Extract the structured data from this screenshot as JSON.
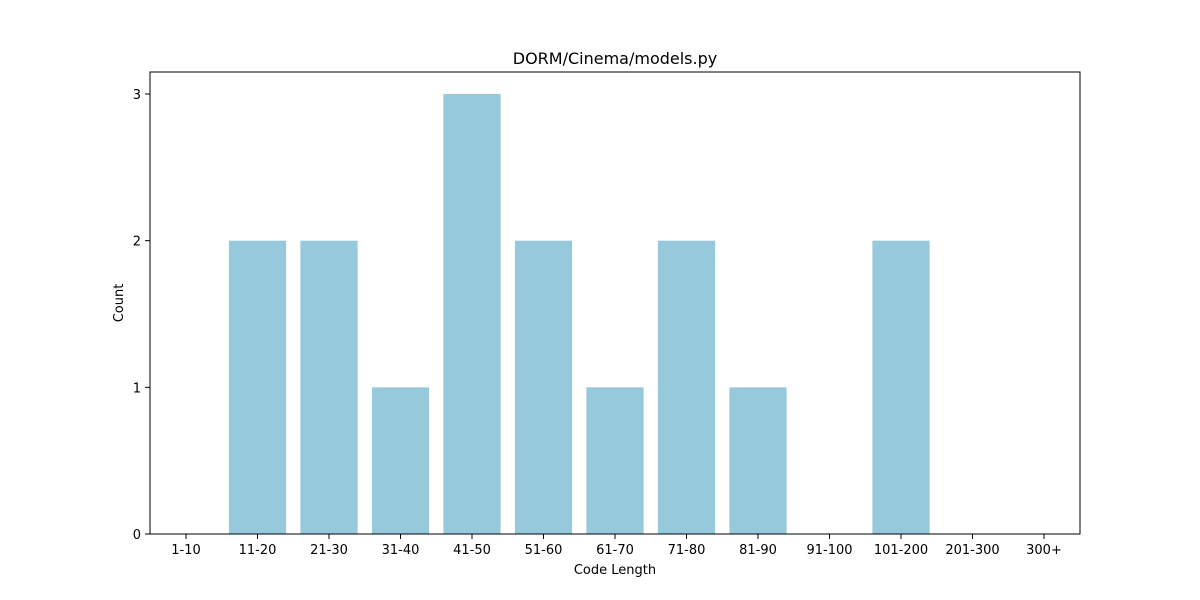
{
  "chart_data": {
    "type": "bar",
    "title": "DORM/Cinema/models.py",
    "xlabel": "Code Length",
    "ylabel": "Count",
    "categories": [
      "1-10",
      "11-20",
      "21-30",
      "31-40",
      "41-50",
      "51-60",
      "61-70",
      "71-80",
      "81-90",
      "91-100",
      "101-200",
      "201-300",
      "300+"
    ],
    "values": [
      0,
      2,
      2,
      1,
      3,
      2,
      1,
      2,
      1,
      0,
      2,
      0,
      0
    ],
    "yticks": [
      0,
      1,
      2,
      3
    ],
    "ylim": [
      0,
      3.15
    ],
    "grid": false,
    "legend": "none",
    "bar_color": "#96c9dc"
  }
}
